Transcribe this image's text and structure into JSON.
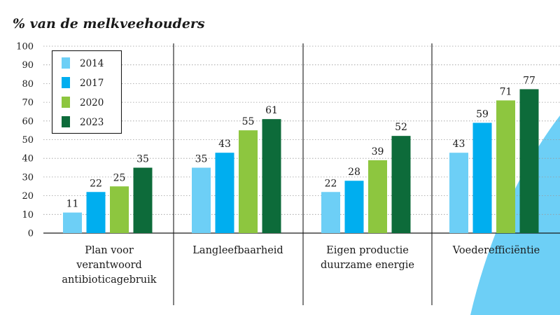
{
  "colors": {
    "series": [
      "#6dcff6",
      "#00aeef",
      "#8dc63f",
      "#0d6b3a"
    ],
    "accent_shape": "#6dcff6",
    "grid": "#9a9a9a",
    "text": "#1a1a1a"
  },
  "chart_data": {
    "type": "bar",
    "title": "% van de melkveehouders",
    "xlabel": "",
    "ylabel": "",
    "ylim": [
      0,
      100
    ],
    "yticks": [
      "0",
      "10",
      "20",
      "30",
      "40",
      "50",
      "60",
      "70",
      "80",
      "90",
      "100"
    ],
    "grid": true,
    "legend": "top-left",
    "categories": [
      [
        "Plan voor",
        "verantwoord",
        "antibioticagebruik"
      ],
      [
        "Langleefbaarheid"
      ],
      [
        "Eigen productie",
        "duurzame energie"
      ],
      [
        "Voederefficiëntie"
      ]
    ],
    "series": [
      {
        "name": "2014",
        "values": [
          11,
          35,
          22,
          43
        ]
      },
      {
        "name": "2017",
        "values": [
          22,
          43,
          28,
          59
        ]
      },
      {
        "name": "2020",
        "values": [
          25,
          55,
          39,
          71
        ]
      },
      {
        "name": "2023",
        "values": [
          35,
          61,
          52,
          77
        ]
      }
    ]
  }
}
